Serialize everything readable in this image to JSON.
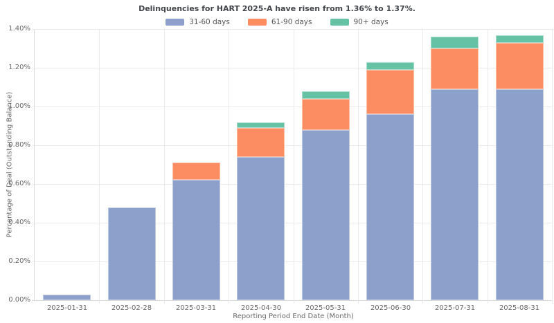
{
  "title": "Delinquencies for HART 2025-A have risen from 1.36% to 1.37%.",
  "chart_data": {
    "type": "bar",
    "stacked": true,
    "title": "Delinquencies for HART 2025-A have risen from 1.36% to 1.37%.",
    "xlabel": "Reporting Period End Date (Month)",
    "ylabel": "Percentage of Deal (Outstanding Balance)",
    "categories": [
      "2025-01-31",
      "2025-02-28",
      "2025-03-31",
      "2025-04-30",
      "2025-05-31",
      "2025-06-30",
      "2025-07-31",
      "2025-08-31"
    ],
    "series": [
      {
        "name": "31-60 days",
        "color": "#8da0cb",
        "values": [
          0.03,
          0.48,
          0.62,
          0.74,
          0.88,
          0.96,
          1.09,
          1.09
        ]
      },
      {
        "name": "61-90 days",
        "color": "#fc8d62",
        "values": [
          0.0,
          0.0,
          0.09,
          0.15,
          0.16,
          0.23,
          0.21,
          0.24
        ]
      },
      {
        "name": "90+ days",
        "color": "#66c2a5",
        "values": [
          0.0,
          0.0,
          0.0,
          0.03,
          0.04,
          0.04,
          0.06,
          0.04
        ]
      }
    ],
    "stack_totals": [
      0.03,
      0.48,
      0.71,
      0.92,
      1.08,
      1.23,
      1.36,
      1.37
    ],
    "ylim": [
      0,
      1.4
    ],
    "yticks": [
      "0.00%",
      "0.20%",
      "0.40%",
      "0.60%",
      "0.80%",
      "1.00%",
      "1.20%",
      "1.40%"
    ],
    "grid": true,
    "legend_position": "top-center"
  },
  "colors": {
    "background": "#ffffff",
    "gridline": "#ebebeb",
    "axis_line": "#d9d9d9",
    "tick_text": "#696969",
    "title_text": "#42454a",
    "legend_text": "#555555"
  }
}
